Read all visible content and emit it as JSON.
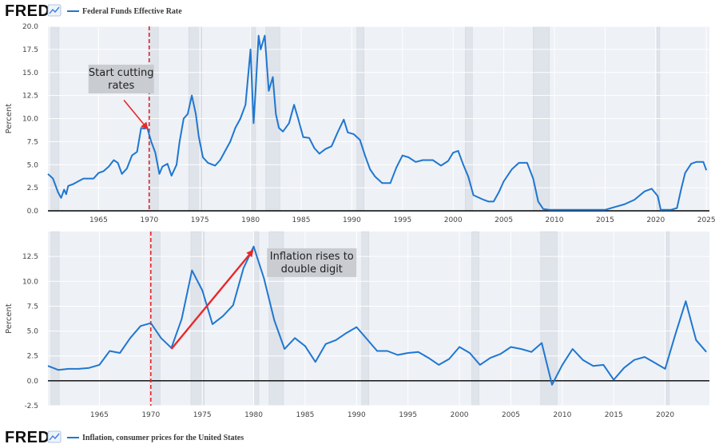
{
  "top_header": {
    "logo": "FRED",
    "legend_label": "Federal Funds Effective Rate",
    "legend_icon": "fred-chart-icon"
  },
  "bottom_footer": {
    "logo": "FRED",
    "legend_label": "Inflation, consumer prices for the United States",
    "legend_icon": "fred-chart-icon"
  },
  "colors": {
    "series": "#1f77d0",
    "annotation_arrow": "#e8282a",
    "marker_line": "#e8282a",
    "recession": "#dfe3ea",
    "plot_bg": "#eef1f6",
    "annotation_box": "#c9ccd1"
  },
  "annotations": {
    "top": "Start cutting\nrates",
    "bottom": "Inflation rises to\ndouble digit"
  },
  "chart_data": [
    {
      "type": "line",
      "title": "",
      "series": [
        {
          "name": "Federal Funds Effective Rate",
          "x": [
            1960.0,
            1960.5,
            1961.0,
            1961.3,
            1961.6,
            1961.8,
            1962.0,
            1962.5,
            1963.0,
            1963.5,
            1964.0,
            1964.5,
            1965.0,
            1965.5,
            1966.0,
            1966.5,
            1966.9,
            1967.3,
            1967.8,
            1968.3,
            1968.8,
            1969.2,
            1969.5,
            1969.8,
            1970.2,
            1970.6,
            1971.0,
            1971.3,
            1971.8,
            1972.2,
            1972.7,
            1973.0,
            1973.4,
            1973.8,
            1974.2,
            1974.6,
            1974.9,
            1975.3,
            1975.8,
            1976.5,
            1977.0,
            1977.5,
            1978.0,
            1978.5,
            1979.0,
            1979.5,
            1980.0,
            1980.3,
            1980.5,
            1980.8,
            1981.0,
            1981.4,
            1981.8,
            1982.2,
            1982.5,
            1982.8,
            1983.2,
            1983.8,
            1984.3,
            1984.7,
            1985.2,
            1985.8,
            1986.3,
            1986.8,
            1987.4,
            1988.0,
            1988.6,
            1989.2,
            1989.6,
            1990.2,
            1990.8,
            1991.3,
            1991.8,
            1992.3,
            1993.0,
            1993.8,
            1994.4,
            1995.0,
            1995.6,
            1996.3,
            1997.0,
            1998.0,
            1998.8,
            1999.5,
            2000.0,
            2000.5,
            2001.0,
            2001.5,
            2002.0,
            2003.0,
            2003.5,
            2004.0,
            2004.5,
            2005.0,
            2005.8,
            2006.5,
            2007.3,
            2007.9,
            2008.4,
            2008.9,
            2009.5,
            2012.0,
            2015.0,
            2015.9,
            2016.9,
            2017.9,
            2018.9,
            2019.6,
            2020.2,
            2020.5,
            2021.5,
            2022.1,
            2022.5,
            2022.9,
            2023.5,
            2024.0,
            2024.7,
            2025.0
          ],
          "y": [
            4.0,
            3.5,
            2.0,
            1.4,
            2.3,
            1.8,
            2.7,
            2.9,
            3.2,
            3.5,
            3.5,
            3.5,
            4.1,
            4.3,
            4.8,
            5.5,
            5.2,
            4.0,
            4.6,
            6.0,
            6.4,
            9.0,
            8.9,
            9.0,
            7.5,
            6.3,
            4.0,
            4.8,
            5.1,
            3.8,
            5.0,
            7.5,
            10.0,
            10.5,
            12.5,
            10.5,
            8.0,
            5.8,
            5.2,
            4.9,
            5.5,
            6.5,
            7.5,
            9.0,
            10.0,
            11.5,
            17.5,
            9.5,
            13.0,
            19.0,
            17.5,
            19.0,
            13.0,
            14.5,
            10.5,
            9.0,
            8.6,
            9.5,
            11.5,
            10.0,
            8.0,
            7.9,
            6.8,
            6.2,
            6.7,
            7.0,
            8.5,
            9.9,
            8.5,
            8.3,
            7.7,
            6.0,
            4.5,
            3.7,
            3.0,
            3.0,
            4.7,
            6.0,
            5.8,
            5.3,
            5.5,
            5.5,
            4.9,
            5.4,
            6.3,
            6.5,
            5.0,
            3.7,
            1.7,
            1.2,
            1.0,
            1.0,
            2.0,
            3.2,
            4.5,
            5.2,
            5.2,
            3.5,
            1.0,
            0.2,
            0.1,
            0.1,
            0.1,
            0.4,
            0.7,
            1.2,
            2.1,
            2.4,
            1.6,
            0.1,
            0.1,
            0.3,
            2.3,
            4.1,
            5.1,
            5.3,
            5.3,
            4.4
          ]
        }
      ],
      "xlabel": "",
      "ylabel": "Percent",
      "xlim": [
        1960.0,
        2025.3
      ],
      "ylim": [
        0,
        20
      ],
      "xticks": [
        1965,
        1970,
        1975,
        1980,
        1985,
        1990,
        1995,
        2000,
        2005,
        2010,
        2015,
        2020,
        2025
      ],
      "yticks": [
        0,
        2.5,
        5,
        7.5,
        10,
        12.5,
        15,
        17.5,
        20
      ],
      "ytick_labels": [
        "0.0",
        "2.5",
        "5.0",
        "7.5",
        "10.0",
        "12.5",
        "15.0",
        "17.5",
        "20.0"
      ],
      "recessions": [
        [
          1960.3,
          1961.1
        ],
        [
          1969.9,
          1970.9
        ],
        [
          1973.9,
          1975.2
        ],
        [
          1980.0,
          1980.5
        ],
        [
          1981.5,
          1982.9
        ],
        [
          1990.5,
          1991.2
        ],
        [
          2001.2,
          2001.9
        ],
        [
          2007.9,
          2009.5
        ],
        [
          2020.1,
          2020.4
        ]
      ],
      "vertical_marker_x": 1970.0,
      "arrow": {
        "from": [
          1967.5,
          12.0
        ],
        "to": [
          1969.9,
          8.8
        ]
      },
      "annotation_anchor": [
        1964.0,
        15.5
      ],
      "grid": true
    },
    {
      "type": "line",
      "title": "",
      "series": [
        {
          "name": "Inflation, consumer prices for the United States",
          "x": [
            1960,
            1961,
            1962,
            1963,
            1964,
            1965,
            1966,
            1967,
            1968,
            1969,
            1970,
            1971,
            1972,
            1973,
            1974,
            1975,
            1976,
            1977,
            1978,
            1979,
            1980,
            1981,
            1982,
            1983,
            1984,
            1985,
            1986,
            1987,
            1988,
            1989,
            1990,
            1991,
            1992,
            1993,
            1994,
            1995,
            1996,
            1997,
            1998,
            1999,
            2000,
            2001,
            2002,
            2003,
            2004,
            2005,
            2006,
            2007,
            2008,
            2009,
            2010,
            2011,
            2012,
            2013,
            2014,
            2015,
            2016,
            2017,
            2018,
            2019,
            2020,
            2021,
            2022,
            2023,
            2024
          ],
          "y": [
            1.5,
            1.1,
            1.2,
            1.2,
            1.3,
            1.6,
            3.0,
            2.8,
            4.3,
            5.5,
            5.8,
            4.3,
            3.3,
            6.2,
            11.1,
            9.1,
            5.7,
            6.5,
            7.6,
            11.3,
            13.5,
            10.3,
            6.1,
            3.2,
            4.3,
            3.5,
            1.9,
            3.7,
            4.1,
            4.8,
            5.4,
            4.2,
            3.0,
            3.0,
            2.6,
            2.8,
            2.9,
            2.3,
            1.6,
            2.2,
            3.4,
            2.8,
            1.6,
            2.3,
            2.7,
            3.4,
            3.2,
            2.9,
            3.8,
            -0.4,
            1.6,
            3.2,
            2.1,
            1.5,
            1.6,
            0.1,
            1.3,
            2.1,
            2.4,
            1.8,
            1.2,
            4.7,
            8.0,
            4.1,
            2.9
          ]
        }
      ],
      "xlabel": "",
      "ylabel": "Percent",
      "xlim": [
        1960.0,
        2024.3
      ],
      "ylim": [
        -2.5,
        15
      ],
      "xticks": [
        1965,
        1970,
        1975,
        1980,
        1985,
        1990,
        1995,
        2000,
        2005,
        2010,
        2015,
        2020
      ],
      "yticks": [
        -2.5,
        0,
        2.5,
        5,
        7.5,
        10,
        12.5
      ],
      "ytick_labels": [
        "-2.5",
        "0.0",
        "2.5",
        "5.0",
        "7.5",
        "10.0",
        "12.5"
      ],
      "recessions": [
        [
          1960.3,
          1961.1
        ],
        [
          1969.9,
          1970.9
        ],
        [
          1973.9,
          1975.2
        ],
        [
          1980.0,
          1980.5
        ],
        [
          1981.5,
          1982.9
        ],
        [
          1990.5,
          1991.2
        ],
        [
          2001.2,
          2001.9
        ],
        [
          2007.9,
          2009.5
        ],
        [
          2020.1,
          2020.4
        ]
      ],
      "vertical_marker_x": 1970.0,
      "arrow": {
        "from": [
          1972.0,
          3.2
        ],
        "to": [
          1980.0,
          13.2
        ]
      },
      "annotation_anchor": [
        1981.3,
        13.0
      ],
      "grid": true
    }
  ]
}
